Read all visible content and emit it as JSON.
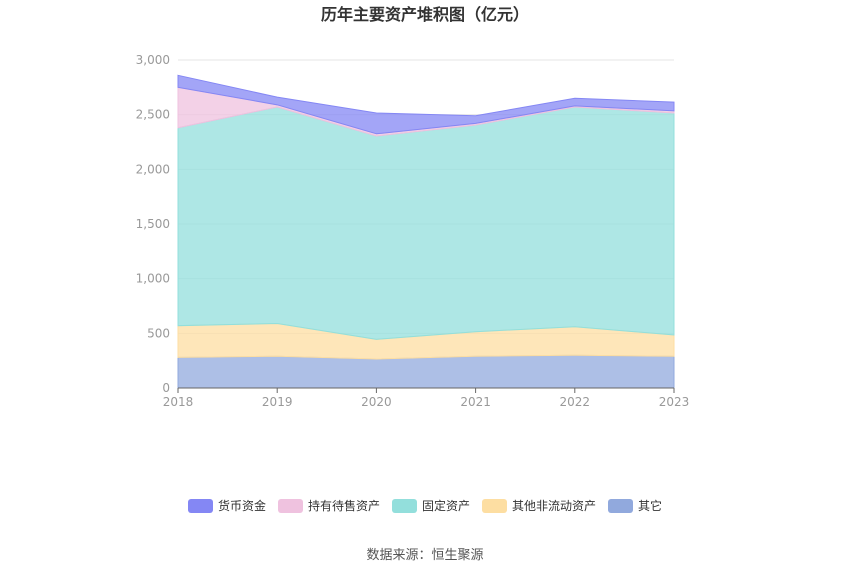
{
  "chart_data": {
    "type": "area",
    "stacked": true,
    "title": "历年主要资产堆积图（亿元）",
    "xlabel": "",
    "ylabel": "",
    "x": [
      "2018",
      "2019",
      "2020",
      "2021",
      "2022",
      "2023"
    ],
    "ylim": [
      0,
      3000
    ],
    "yticks": [
      0,
      500,
      1000,
      1500,
      2000,
      2500,
      3000
    ],
    "ytick_labels": [
      "0",
      "500",
      "1,000",
      "1,500",
      "2,000",
      "2,500",
      "3,000"
    ],
    "grid": true,
    "legend_position": "bottom",
    "series": [
      {
        "name": "其它",
        "color": "#91a9dd",
        "values": [
          280,
          290,
          265,
          290,
          300,
          290
        ]
      },
      {
        "name": "其他非流动资产",
        "color": "#fddea2",
        "values": [
          290,
          300,
          180,
          225,
          260,
          195
        ]
      },
      {
        "name": "固定资产",
        "color": "#93dfdc",
        "values": [
          1810,
          1980,
          1860,
          1890,
          2010,
          2030
        ]
      },
      {
        "name": "持有待售资产",
        "color": "#efc2df",
        "values": [
          370,
          20,
          20,
          15,
          10,
          20
        ]
      },
      {
        "name": "货币资金",
        "color": "#8487f4",
        "values": [
          110,
          70,
          190,
          70,
          70,
          80
        ]
      }
    ],
    "legend_order": [
      "货币资金",
      "持有待售资产",
      "固定资产",
      "其他非流动资产",
      "其它"
    ]
  },
  "source_label": "数据来源：恒生聚源"
}
